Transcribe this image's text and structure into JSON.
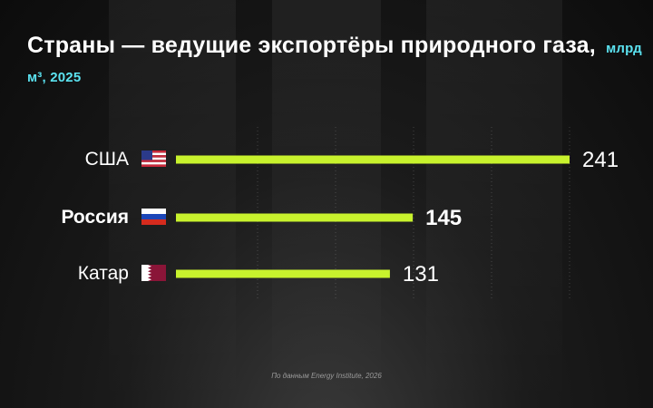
{
  "title": {
    "main": "Страны — ведущие экспортёры природного газа,",
    "unit": "млрд м³, 2025"
  },
  "source": "По данным Energy Institute, 2026",
  "colors": {
    "bar": "#c8f22d",
    "unit_text": "#5be2f0",
    "background": "#141414"
  },
  "chart_data": {
    "type": "bar",
    "orientation": "horizontal",
    "categories": [
      "США",
      "Россия",
      "Катар"
    ],
    "values": [
      241,
      145,
      131
    ],
    "flags": [
      "us-flag-icon",
      "russia-flag-icon",
      "qatar-flag-icon"
    ],
    "highlight": "Россия",
    "xlim": [
      0,
      241
    ],
    "grid": true,
    "legend": "none"
  }
}
